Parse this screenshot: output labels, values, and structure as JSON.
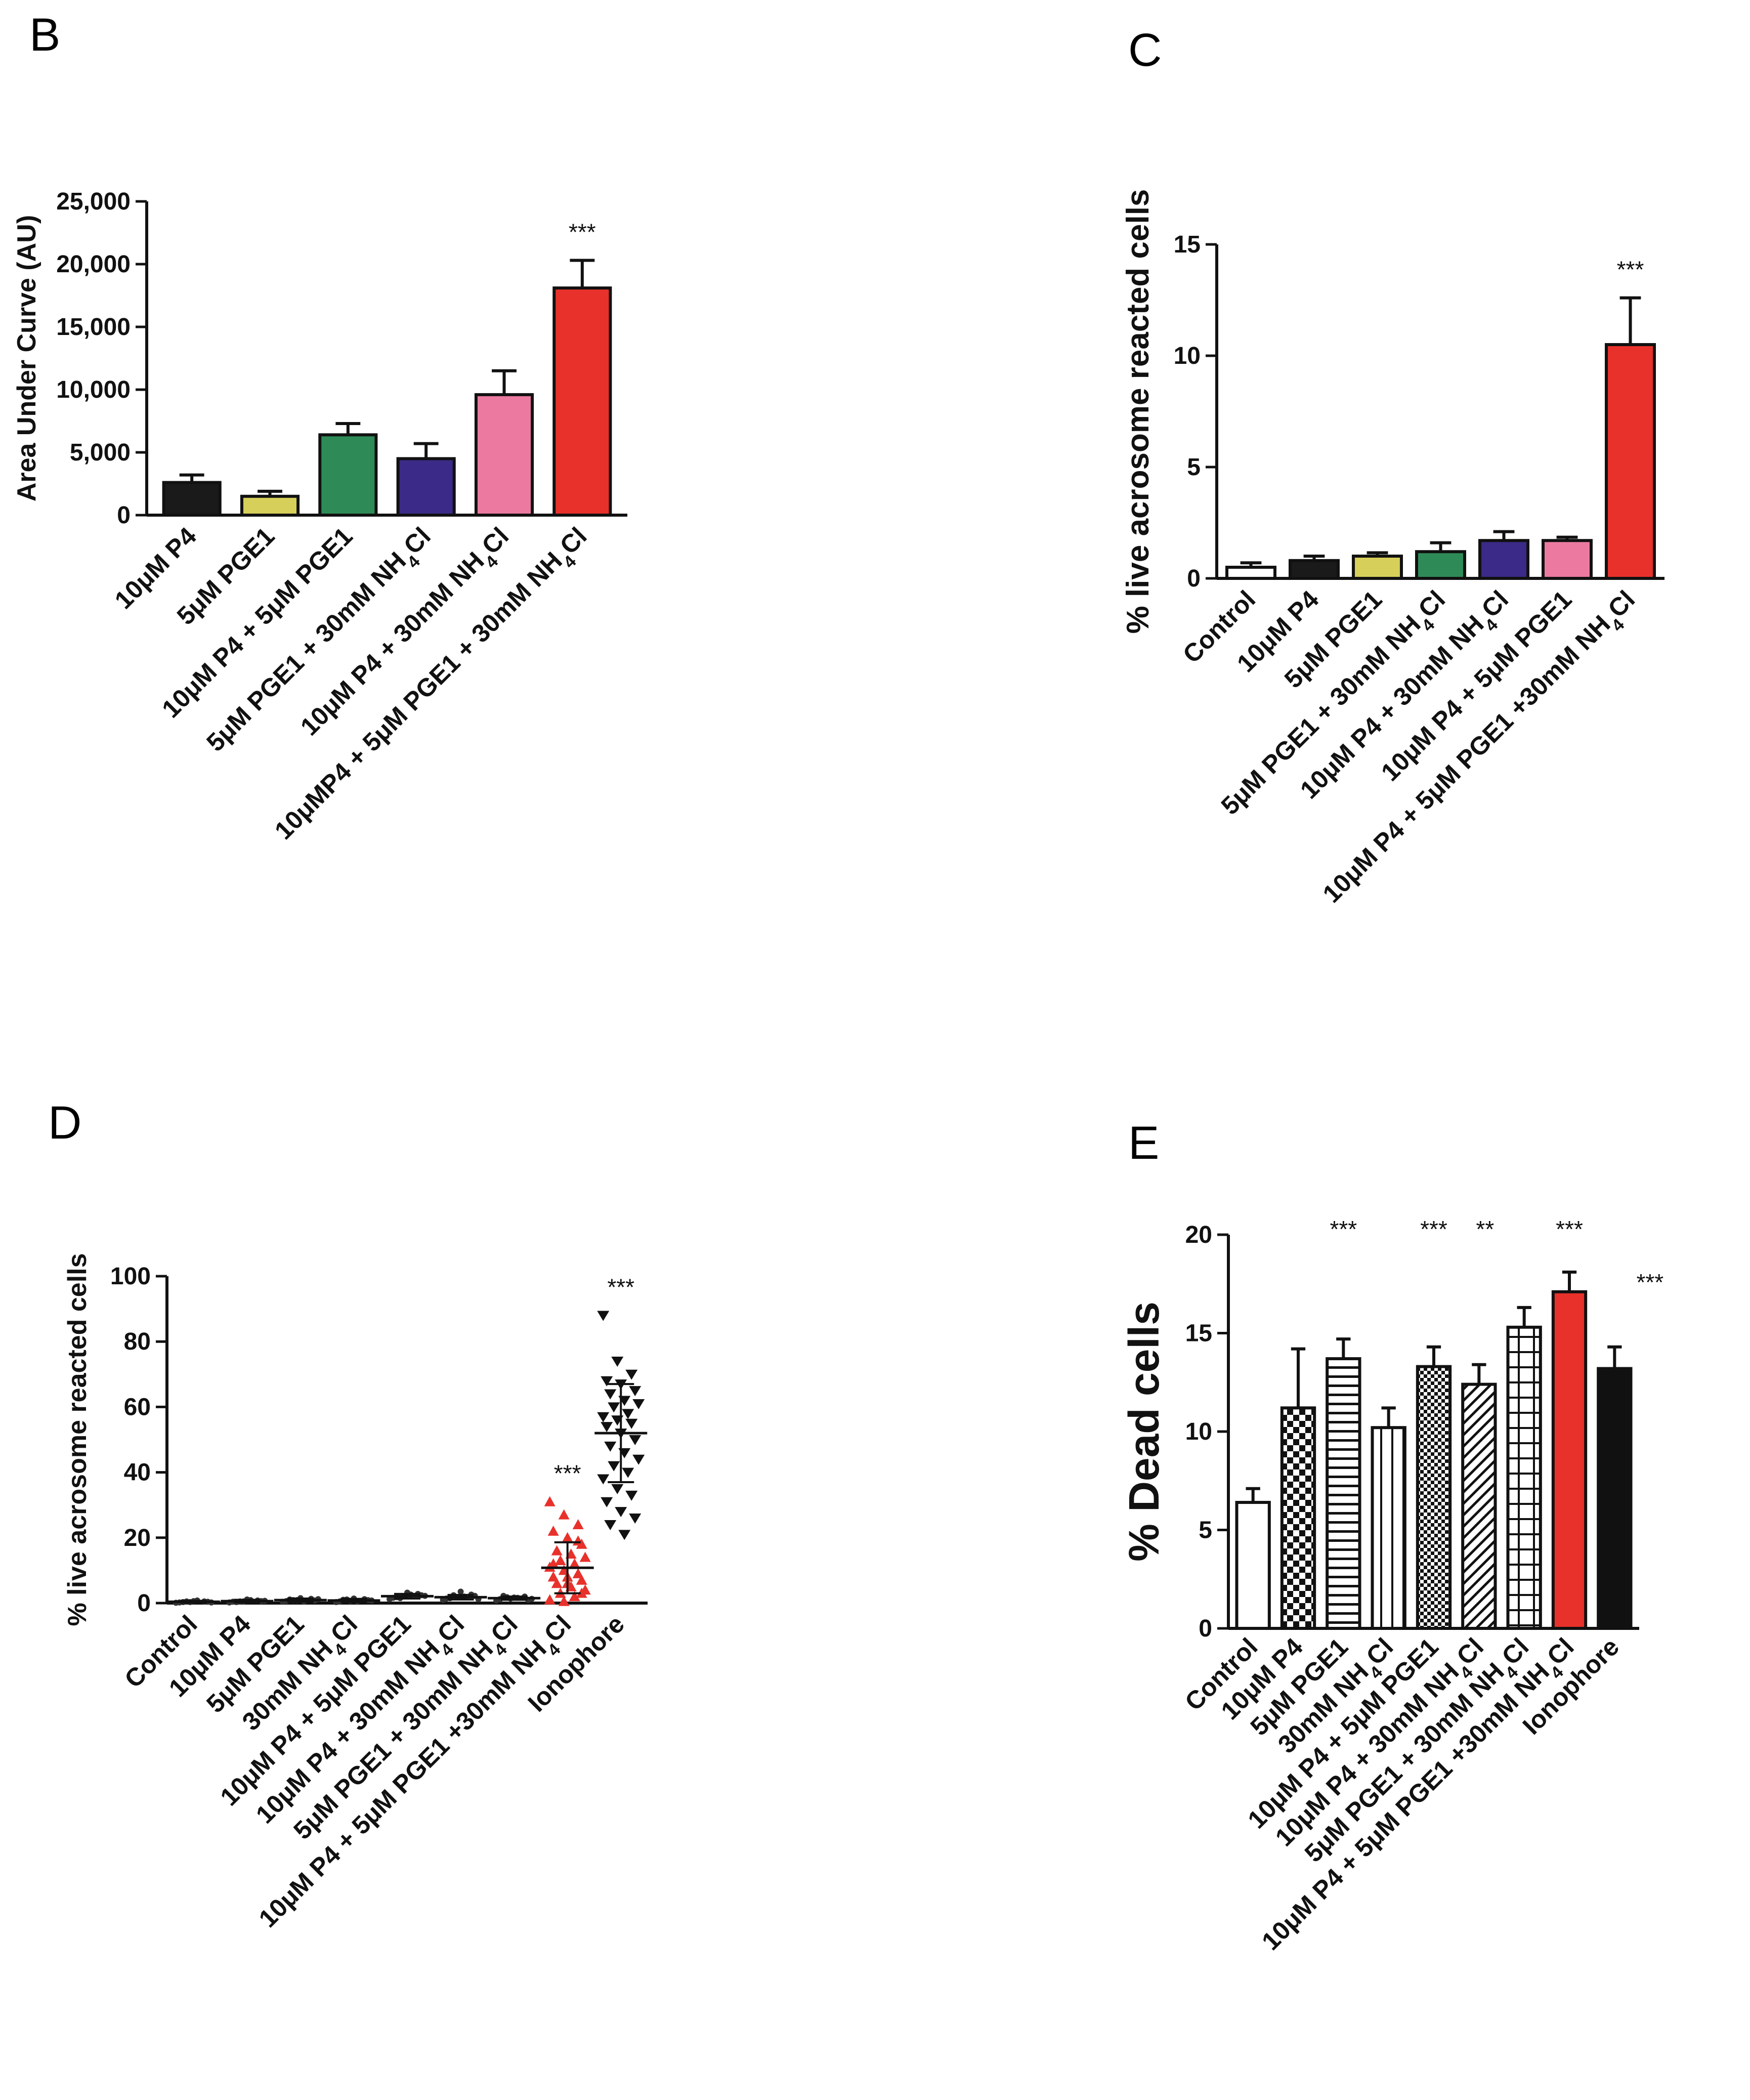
{
  "figure": {
    "panels": [
      "B",
      "C",
      "D",
      "E"
    ]
  },
  "chart_data": [
    {
      "panel": "B",
      "type": "bar",
      "title": "",
      "xlabel": "",
      "ylabel": "Area Under Curve (AU)",
      "ylim": [
        0,
        25000
      ],
      "yticks": [
        0,
        5000,
        10000,
        15000,
        20000,
        25000
      ],
      "ytick_labels": [
        "0",
        "5,000",
        "10,000",
        "15,000",
        "20,000",
        "25,000"
      ],
      "categories": [
        "10μM P4",
        "5μM PGE1",
        "10μM P4 + 5μM PGE1",
        "5μM PGE1 + 30mM NH4Cl",
        "10μM P4 + 30mM NH4Cl",
        "10μMP4 + 5μM PGE1 + 30mM NH4Cl"
      ],
      "values": [
        2600,
        1500,
        6400,
        4500,
        9600,
        18100
      ],
      "errors": [
        600,
        400,
        900,
        1200,
        1900,
        2200
      ],
      "colors": [
        "#1a1a1a",
        "#d6cf5a",
        "#2e8b57",
        "#3b2a87",
        "#ec7aa0",
        "#e8312b"
      ],
      "significance": [
        "",
        "",
        "",
        "",
        "",
        "***"
      ]
    },
    {
      "panel": "C",
      "type": "bar",
      "title": "",
      "xlabel": "",
      "ylabel": "% live acrosome reacted cells",
      "ylim": [
        0,
        15
      ],
      "yticks": [
        0,
        5,
        10,
        15
      ],
      "ytick_labels": [
        "0",
        "5",
        "10",
        "15"
      ],
      "categories": [
        "Control",
        "10μM P4",
        "5μM PGE1",
        "5μM PGE1 + 30mM NH4Cl",
        "10μM P4 + 30mM NH4Cl",
        "10μM P4 + 5μM PGE1",
        "10μM P4 + 5μM PGE1 +30mM NH4Cl"
      ],
      "values": [
        0.5,
        0.8,
        1.0,
        1.2,
        1.7,
        1.7,
        10.5
      ],
      "errors": [
        0.2,
        0.2,
        0.15,
        0.4,
        0.4,
        0.15,
        2.1
      ],
      "colors": [
        "#ffffff",
        "#1a1a1a",
        "#d6cf5a",
        "#2e8b57",
        "#3b2a87",
        "#ec7aa0",
        "#e8312b"
      ],
      "significance": [
        "",
        "",
        "",
        "",
        "",
        "",
        "***"
      ]
    },
    {
      "panel": "D",
      "type": "scatter",
      "title": "",
      "xlabel": "",
      "ylabel": "% live acrosome reacted cells",
      "ylim": [
        0,
        100
      ],
      "yticks": [
        0,
        20,
        40,
        60,
        80,
        100
      ],
      "ytick_labels": [
        "0",
        "20",
        "40",
        "60",
        "80",
        "100"
      ],
      "categories": [
        "Control",
        "10μM P4",
        "5μM PGE1",
        "30mM NH4Cl",
        "10μM P4 + 5μM PGE1",
        "10μM P4 + 30mM NH4Cl",
        "5μM PGE1 + 30mM NH4Cl",
        "10μM P4 + 5μM PGE1 +30mM NH4Cl",
        "Ionophore"
      ],
      "means": [
        0.4,
        0.6,
        0.9,
        0.8,
        2.1,
        1.8,
        1.5,
        10.8,
        52.0
      ],
      "sd": [
        0.3,
        0.4,
        0.5,
        0.5,
        0.7,
        0.7,
        0.5,
        7.8,
        15.0
      ],
      "points": [
        [
          0.1,
          0.3,
          0.5,
          0.2,
          0.6,
          0.4,
          0.3,
          0.8,
          0.2,
          0.5
        ],
        [
          0.2,
          0.5,
          0.8,
          0.4,
          1.1,
          0.6,
          0.3,
          0.9,
          0.7,
          0.5
        ],
        [
          0.4,
          0.9,
          1.3,
          0.6,
          1.5,
          0.8,
          1.1,
          0.5,
          1.2,
          0.9
        ],
        [
          0.3,
          0.7,
          1.2,
          0.5,
          1.4,
          0.9,
          1.0,
          0.6,
          0.8,
          1.1
        ],
        [
          1.2,
          2.0,
          2.8,
          1.6,
          3.2,
          2.4,
          1.8,
          2.6,
          2.2,
          1.5
        ],
        [
          1.0,
          1.8,
          2.6,
          1.4,
          3.5,
          2.2,
          1.5,
          2.0,
          1.2,
          2.4
        ],
        [
          0.8,
          1.4,
          2.0,
          1.2,
          1.7,
          1.0,
          2.2,
          1.6,
          1.3,
          1.8
        ],
        [
          31,
          27,
          24,
          22,
          20,
          18,
          16,
          15,
          14,
          13,
          12,
          11,
          10,
          9,
          8,
          8,
          7,
          6,
          5,
          4,
          3,
          2,
          1,
          0.5,
          19,
          12,
          6,
          3
        ],
        [
          88,
          74,
          70,
          68,
          67,
          65,
          64,
          62,
          61,
          60,
          58,
          57,
          56,
          55,
          54,
          52,
          50,
          48,
          46,
          44,
          42,
          40,
          38,
          35,
          33,
          31,
          28,
          26,
          24,
          21
        ]
      ],
      "colors": [
        "#333333",
        "#333333",
        "#333333",
        "#333333",
        "#333333",
        "#333333",
        "#333333",
        "#e8312b",
        "#111111"
      ],
      "markers": [
        "dot",
        "dot",
        "dot",
        "dot",
        "dot",
        "dot",
        "dot",
        "triangle-up",
        "triangle-down"
      ],
      "significance": [
        "",
        "",
        "",
        "",
        "",
        "",
        "",
        "***",
        "***"
      ]
    },
    {
      "panel": "E",
      "type": "bar",
      "title": "",
      "xlabel": "",
      "ylabel": "% Dead cells",
      "ylim": [
        0,
        20
      ],
      "yticks": [
        0,
        5,
        10,
        15,
        20
      ],
      "ytick_labels": [
        "0",
        "5",
        "10",
        "15",
        "20"
      ],
      "categories": [
        "Control",
        "10μM P4",
        "5μM PGE1",
        "30mM NH4Cl",
        "10μM P4 + 5μM PGE1",
        "10μM P4 + 30mM NH4Cl",
        "5μM PGE1 + 30mM NH4Cl",
        "10μM P4 + 5μM PGE1 +30mM NH4Cl",
        "Ionophore"
      ],
      "values": [
        6.4,
        11.2,
        13.7,
        10.2,
        13.3,
        12.4,
        15.3,
        17.1,
        13.2
      ],
      "errors": [
        0.7,
        3.0,
        1.0,
        1.0,
        1.0,
        1.0,
        1.0,
        1.0,
        1.1
      ],
      "fills": [
        "white",
        "checker",
        "hlines",
        "vlines",
        "dense-checker",
        "diagonal",
        "grid",
        "red",
        "black"
      ],
      "significance": [
        "",
        "",
        "***",
        "",
        "***",
        "**",
        "",
        "***",
        "***"
      ]
    }
  ]
}
